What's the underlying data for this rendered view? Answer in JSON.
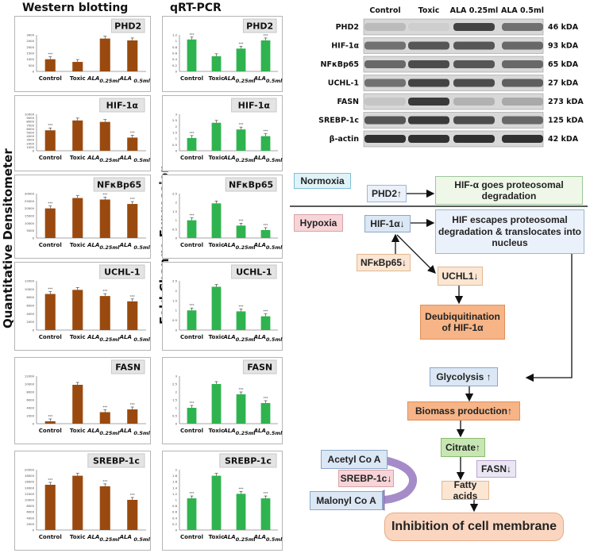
{
  "headers": {
    "western": "Western blotting",
    "qrt": "qRT-PCR"
  },
  "axis_labels": {
    "left": "Quantitative Densitometer",
    "mid": "Fold Change Expression"
  },
  "colors": {
    "wb_bar": "#9a4a0f",
    "qrt_bar": "#2fb34f",
    "arrow_purple": "#a58cc8"
  },
  "chart_data": [
    {
      "type": "bar",
      "panel": "western",
      "title": "PHD2",
      "categories": [
        "Control",
        "Toxic",
        "ALA0.25ml",
        "ALA 0.5ml"
      ],
      "values": [
        1000,
        780,
        2700,
        2550
      ],
      "ylim": [
        0,
        3000
      ],
      "yticks": [
        "0",
        "500",
        "1000",
        "1500",
        "2000",
        "2500",
        "3000"
      ],
      "sig": [
        "***",
        "",
        "",
        ""
      ]
    },
    {
      "type": "bar",
      "panel": "western",
      "title": "HIF-1α",
      "categories": [
        "Control",
        "Toxic",
        "ALA0.25ml",
        "ALA 0.5ml"
      ],
      "values": [
        5600,
        8300,
        7900,
        3600
      ],
      "ylim": [
        0,
        10000
      ],
      "yticks": [
        "0",
        "1000",
        "2000",
        "3000",
        "4000",
        "5000",
        "6000",
        "7000",
        "8000",
        "9000",
        "10000"
      ],
      "sig": [
        "***",
        "",
        "",
        "***"
      ]
    },
    {
      "type": "bar",
      "panel": "western",
      "title": "NFκBp65",
      "categories": [
        "Control",
        "Toxic",
        "ALA0.25ml",
        "ALA 0.5ml"
      ],
      "values": [
        20000,
        27000,
        26000,
        23000
      ],
      "ylim": [
        0,
        30000
      ],
      "yticks": [
        "0",
        "5000",
        "10000",
        "15000",
        "20000",
        "25000",
        "30000"
      ],
      "sig": [
        "***",
        "",
        "***",
        "***"
      ]
    },
    {
      "type": "bar",
      "panel": "western",
      "title": "UCHL-1",
      "categories": [
        "Control",
        "Toxic",
        "ALA0.25ml",
        "ALA 0.5ml"
      ],
      "values": [
        8800,
        9800,
        8300,
        7000
      ],
      "ylim": [
        0,
        12000
      ],
      "yticks": [
        "0",
        "2000",
        "4000",
        "6000",
        "8000",
        "10000",
        "12000"
      ],
      "sig": [
        "***",
        "",
        "***",
        "***"
      ]
    },
    {
      "type": "bar",
      "panel": "western",
      "title": "FASN",
      "categories": [
        "Control",
        "Toxic",
        "ALA0.25ml",
        "ALA 0.5ml"
      ],
      "values": [
        600,
        9800,
        2900,
        3600
      ],
      "ylim": [
        0,
        12000
      ],
      "yticks": [
        "0",
        "2000",
        "4000",
        "6000",
        "8000",
        "10000",
        "12000"
      ],
      "sig": [
        "***",
        "",
        "***",
        "***"
      ]
    },
    {
      "type": "bar",
      "panel": "western",
      "title": "SREBP-1c",
      "categories": [
        "Control",
        "Toxic",
        "ALA0.25ml",
        "ALA 0.5ml"
      ],
      "values": [
        15000,
        18000,
        14500,
        10000
      ],
      "ylim": [
        0,
        20000
      ],
      "yticks": [
        "0",
        "2000",
        "4000",
        "6000",
        "8000",
        "10000",
        "12000",
        "14000",
        "16000",
        "18000",
        "20000"
      ],
      "sig": [
        "***",
        "",
        "***",
        "***"
      ]
    },
    {
      "type": "bar",
      "panel": "qrt",
      "title": "PHD2",
      "categories": [
        "Control",
        "Toxic",
        "ALA0.25ml",
        "ALA0.5ml"
      ],
      "values": [
        1.05,
        0.5,
        0.75,
        1.02
      ],
      "ylim": [
        0,
        1.2
      ],
      "yticks": [
        "0",
        "0.2",
        "0.4",
        "0.6",
        "0.8",
        "1",
        "1.2"
      ],
      "sig": [
        "***",
        "",
        "***",
        "***"
      ]
    },
    {
      "type": "bar",
      "panel": "qrt",
      "title": "HIF-1α",
      "categories": [
        "Control",
        "Toxic",
        "ALA0.25ml",
        "ALA0.5ml"
      ],
      "values": [
        1.05,
        2.3,
        1.75,
        1.2
      ],
      "ylim": [
        0,
        3
      ],
      "yticks": [
        "0",
        "0.5",
        "1",
        "1.5",
        "2",
        "2.5",
        "3"
      ],
      "sig": [
        "***",
        "",
        "***",
        "***"
      ]
    },
    {
      "type": "bar",
      "panel": "qrt",
      "title": "NFκBp65",
      "categories": [
        "Control",
        "Toxic",
        "ALA0.25ml",
        "ALA0.5ml"
      ],
      "values": [
        1.0,
        1.95,
        0.7,
        0.45
      ],
      "ylim": [
        0,
        2.5
      ],
      "yticks": [
        "0",
        "0.5",
        "1",
        "1.5",
        "2",
        "2.5"
      ],
      "sig": [
        "***",
        "",
        "***",
        "***"
      ]
    },
    {
      "type": "bar",
      "panel": "qrt",
      "title": "UCHL-1",
      "categories": [
        "Control",
        "Toxic",
        "ALA0.25ml",
        "ALA0.5ml"
      ],
      "values": [
        1.0,
        2.2,
        0.95,
        0.7
      ],
      "ylim": [
        0,
        2.5
      ],
      "yticks": [
        "0",
        "0.5",
        "1",
        "1.5",
        "2",
        "2.5"
      ],
      "sig": [
        "***",
        "",
        "***",
        "***"
      ]
    },
    {
      "type": "bar",
      "panel": "qrt",
      "title": "FASN",
      "categories": [
        "Control",
        "Toxic",
        "ALA0.25ml",
        "ALA0.5ml"
      ],
      "values": [
        1.0,
        2.5,
        1.85,
        1.3
      ],
      "ylim": [
        0,
        3
      ],
      "yticks": [
        "0",
        "0.5",
        "1",
        "1.5",
        "2",
        "2.5",
        "3"
      ],
      "sig": [
        "***",
        "",
        "***",
        "***"
      ]
    },
    {
      "type": "bar",
      "panel": "qrt",
      "title": "SREBP-1c",
      "categories": [
        "Control",
        "Toxic",
        "ALA0.25ml",
        "ALA0.5ml"
      ],
      "values": [
        1.05,
        1.8,
        1.2,
        1.05
      ],
      "ylim": [
        0,
        2
      ],
      "yticks": [
        "0",
        "0.2",
        "0.4",
        "0.6",
        "0.8",
        "1",
        "1.2",
        "1.4",
        "1.6",
        "1.8",
        "2"
      ],
      "sig": [
        "***",
        "",
        "***",
        "***"
      ]
    }
  ],
  "blot": {
    "columns": [
      "Control",
      "Toxic",
      "ALA 0.25ml",
      "ALA 0.5ml"
    ],
    "rows": [
      {
        "name": "PHD2",
        "kda": "46 kDA"
      },
      {
        "name": "HIF-1α",
        "kda": "93 kDA"
      },
      {
        "name": "NFκBp65",
        "kda": "65 kDA"
      },
      {
        "name": "UCHL-1",
        "kda": "27 kDA"
      },
      {
        "name": "FASN",
        "kda": "273 kDA"
      },
      {
        "name": "SREBP-1c",
        "kda": "125 kDA"
      },
      {
        "name": "β-actin",
        "kda": "42 kDA"
      }
    ]
  },
  "flow": {
    "normoxia": "Normoxia",
    "phd2": "PHD2↑",
    "hif_degradation": "HIF-α goes proteosomal degradation",
    "hypoxia": "Hypoxia",
    "hif1a": "HIF-1α↓",
    "hif_escape": "HIF escapes proteosomal degradation & translocates into nucleus",
    "nfkb": "NFκBp65↓",
    "uchl1": "UCHL1↓",
    "deubiq": "Deubiquitination of HIF-1α",
    "glycolysis": "Glycolysis ↑",
    "biomass": "Biomass production↑",
    "citrate": "Citrate↑",
    "fasn": "FASN↓",
    "acetyl": "Acetyl Co A",
    "srebp": "SREBP-1c↓",
    "malonyl": "Malonyl Co A",
    "fatty": "Fatty acids",
    "inhibition": "Inhibition of cell membrane"
  }
}
